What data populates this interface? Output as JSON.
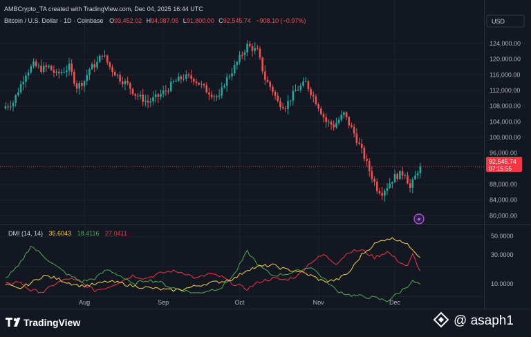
{
  "header": {
    "created_line": "AMBCrypto_TA created with TradingView.com, Dec 04, 2025 16:44 UTC",
    "symbol_line": "Bitcoin / U.S. Dollar · 1D · Coinbase",
    "ohlc": {
      "o_label": "O",
      "o_value": "93,452.02",
      "h_label": "H",
      "h_value": "94,087.05",
      "l_label": "L",
      "l_value": "91,800.00",
      "c_label": "C",
      "c_value": "92,545.74",
      "change": "−908.10 (−0.97%)"
    },
    "currency_button": "USD"
  },
  "price_axis": {
    "labels": [
      "124,000.00",
      "120,000.00",
      "116,000.00",
      "112,000.00",
      "108,000.00",
      "104,000.00",
      "100,000.00",
      "96,000.00",
      "88,000.00",
      "84,000.00",
      "80,000.00"
    ],
    "last_price": "92,545.74",
    "countdown": "07:15:55"
  },
  "dmi": {
    "label": "DMI (14, 14)",
    "adx": "35.6043",
    "plus_di": "18.4116",
    "minus_di": "27.0411",
    "axis_labels": [
      "50.0000",
      "30.0000",
      "10.0000"
    ]
  },
  "time_axis": {
    "labels": [
      "Aug",
      "Sep",
      "Oct",
      "Nov",
      "Dec"
    ]
  },
  "footer": {
    "brand": "TradingView",
    "watermark": "@ asaph1"
  },
  "colors": {
    "background": "#131722",
    "up": "#26a69a",
    "down": "#ef5350",
    "adx": "#f7d44c",
    "plus_di": "#4caf50",
    "minus_di": "#f23645",
    "grid": "#1e2230"
  },
  "chart_data": {
    "type": "candlestick",
    "start_date": "2025-07-01",
    "interval": "1D",
    "y_min": 79000,
    "y_max": 127000,
    "candle_anchors": [
      [
        0,
        108000
      ],
      [
        3,
        109000
      ],
      [
        8,
        116500
      ],
      [
        11,
        118500
      ],
      [
        14,
        117500
      ],
      [
        17,
        118000
      ],
      [
        20,
        116000
      ],
      [
        25,
        118000
      ],
      [
        28,
        113000
      ],
      [
        31,
        114500
      ],
      [
        33,
        117500
      ],
      [
        36,
        119000
      ],
      [
        38,
        121500
      ],
      [
        41,
        118000
      ],
      [
        45,
        115000
      ],
      [
        48,
        113500
      ],
      [
        51,
        111000
      ],
      [
        56,
        109000
      ],
      [
        60,
        110500
      ],
      [
        63,
        112000
      ],
      [
        66,
        114000
      ],
      [
        70,
        115500
      ],
      [
        74,
        115000
      ],
      [
        79,
        112000
      ],
      [
        84,
        110000
      ],
      [
        86,
        114000
      ],
      [
        90,
        118000
      ],
      [
        95,
        123500
      ],
      [
        99,
        122000
      ],
      [
        102,
        115000
      ],
      [
        105,
        112000
      ],
      [
        107,
        109000
      ],
      [
        110,
        108000
      ],
      [
        114,
        112000
      ],
      [
        118,
        114000
      ],
      [
        123,
        108000
      ],
      [
        126,
        104000
      ],
      [
        129,
        103000
      ],
      [
        133,
        106000
      ],
      [
        137,
        101000
      ],
      [
        141,
        95000
      ],
      [
        143,
        91500
      ],
      [
        146,
        87000
      ],
      [
        148,
        86000
      ],
      [
        153,
        90000
      ],
      [
        157,
        91000
      ],
      [
        159,
        87000
      ],
      [
        162,
        91500
      ],
      [
        163,
        92545
      ]
    ],
    "dmi_ranges": {
      "min": 5,
      "max": 55
    },
    "adx_anchors": [
      [
        0,
        18
      ],
      [
        5,
        15
      ],
      [
        10,
        19
      ],
      [
        15,
        24
      ],
      [
        20,
        22
      ],
      [
        25,
        19
      ],
      [
        30,
        17
      ],
      [
        35,
        18
      ],
      [
        40,
        20
      ],
      [
        45,
        19
      ],
      [
        50,
        17
      ],
      [
        55,
        16
      ],
      [
        60,
        15
      ],
      [
        65,
        14
      ],
      [
        70,
        15
      ],
      [
        75,
        17
      ],
      [
        80,
        19
      ],
      [
        85,
        20
      ],
      [
        90,
        22
      ],
      [
        95,
        28
      ],
      [
        100,
        30
      ],
      [
        105,
        31
      ],
      [
        110,
        28
      ],
      [
        115,
        27
      ],
      [
        120,
        24
      ],
      [
        125,
        20
      ],
      [
        130,
        21
      ],
      [
        135,
        26
      ],
      [
        140,
        38
      ],
      [
        145,
        45
      ],
      [
        150,
        49
      ],
      [
        155,
        48
      ],
      [
        160,
        42
      ],
      [
        163,
        36
      ]
    ],
    "plus_di_anchors": [
      [
        0,
        22
      ],
      [
        5,
        30
      ],
      [
        10,
        44
      ],
      [
        15,
        37
      ],
      [
        20,
        30
      ],
      [
        25,
        24
      ],
      [
        30,
        20
      ],
      [
        35,
        22
      ],
      [
        40,
        28
      ],
      [
        45,
        24
      ],
      [
        50,
        18
      ],
      [
        55,
        21
      ],
      [
        60,
        20
      ],
      [
        65,
        16
      ],
      [
        70,
        14
      ],
      [
        75,
        12
      ],
      [
        80,
        14
      ],
      [
        85,
        16
      ],
      [
        90,
        25
      ],
      [
        95,
        40
      ],
      [
        100,
        30
      ],
      [
        105,
        24
      ],
      [
        110,
        25
      ],
      [
        115,
        27
      ],
      [
        120,
        30
      ],
      [
        125,
        22
      ],
      [
        130,
        14
      ],
      [
        135,
        11
      ],
      [
        140,
        10
      ],
      [
        145,
        9
      ],
      [
        150,
        7
      ],
      [
        155,
        13
      ],
      [
        160,
        20
      ],
      [
        163,
        18
      ]
    ],
    "minus_di_anchors": [
      [
        0,
        18
      ],
      [
        5,
        20
      ],
      [
        10,
        14
      ],
      [
        15,
        13
      ],
      [
        20,
        19
      ],
      [
        25,
        22
      ],
      [
        30,
        19
      ],
      [
        35,
        14
      ],
      [
        40,
        16
      ],
      [
        45,
        20
      ],
      [
        50,
        24
      ],
      [
        55,
        22
      ],
      [
        60,
        25
      ],
      [
        65,
        27
      ],
      [
        70,
        26
      ],
      [
        75,
        22
      ],
      [
        80,
        25
      ],
      [
        85,
        23
      ],
      [
        90,
        18
      ],
      [
        95,
        15
      ],
      [
        100,
        20
      ],
      [
        105,
        22
      ],
      [
        110,
        21
      ],
      [
        115,
        24
      ],
      [
        120,
        33
      ],
      [
        125,
        38
      ],
      [
        130,
        32
      ],
      [
        135,
        40
      ],
      [
        140,
        41
      ],
      [
        145,
        36
      ],
      [
        150,
        40
      ],
      [
        155,
        33
      ],
      [
        158,
        30
      ],
      [
        160,
        38
      ],
      [
        163,
        27
      ]
    ],
    "grid_prices": [
      124000,
      120000,
      116000,
      112000,
      108000,
      104000,
      100000,
      96000,
      88000,
      84000,
      80000
    ],
    "month_ticks": [
      {
        "label": "Aug",
        "day": 31
      },
      {
        "label": "Sep",
        "day": 62
      },
      {
        "label": "Oct",
        "day": 92
      },
      {
        "label": "Nov",
        "day": 123
      },
      {
        "label": "Dec",
        "day": 153
      }
    ]
  }
}
